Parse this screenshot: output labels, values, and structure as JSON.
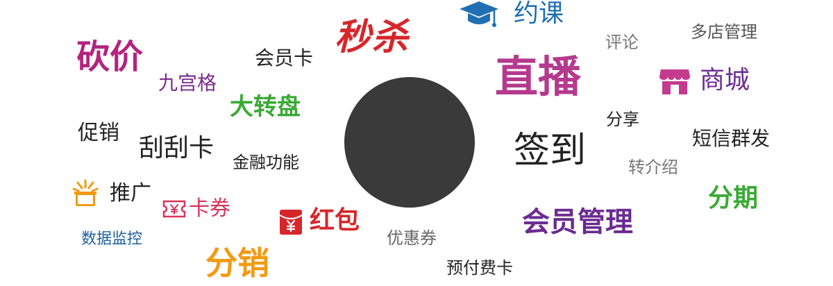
{
  "words": {
    "kanjia": "砍价",
    "jiugongge": "九宫格",
    "huiyuanka": "会员卡",
    "miaosha": "秒杀",
    "dazhuanpan": "大转盘",
    "cuxiao": "促销",
    "guaguaka": "刮刮卡",
    "jinrong": "金融功能",
    "tuiguang": "推广",
    "kaquan": "卡券",
    "hongbao": "红包",
    "shuju": "数据监控",
    "fenxiao": "分销",
    "youhuiquan": "优惠券",
    "yufu": "预付费卡",
    "yueke": "约课",
    "pinglun": "评论",
    "duodian": "多店管理",
    "zhibo": "直播",
    "shangcheng": "商城",
    "fenxiang": "分享",
    "duanxin": "短信群发",
    "qiandao": "签到",
    "zhuanjie": "转介绍",
    "fenqi": "分期",
    "huiyuanguanli": "会员管理"
  },
  "colors": {
    "kanjia": "#b3237f",
    "jiugongge": "#7a2c8c",
    "huiyuanka": "#222222",
    "miaosha": "#d7262b",
    "dazhuanpan": "#3aa935",
    "cuxiao": "#222222",
    "guaguaka": "#222222",
    "jinrong": "#222222",
    "tuiguang": "#222222",
    "kaquan": "#d8345a",
    "hongbao": "#d7262b",
    "shuju": "#1f5f9e",
    "fenxiao": "#f39a12",
    "youhuiquan": "#666666",
    "yufu": "#222222",
    "yueke": "#1f6fb2",
    "pinglun": "#777777",
    "duodian": "#555555",
    "zhibo": "#b43a8e",
    "shangcheng": "#6b2c91",
    "fenxiang": "#222222",
    "duanxin": "#222222",
    "qiandao": "#222222",
    "zhuanjie": "#777777",
    "fenqi": "#3aa935",
    "huiyuanguanli": "#6b2c91",
    "center_circle": "#3a3a3a",
    "icon_graduation": "#1f6fb2",
    "icon_store": "#c43b8e",
    "icon_gift": "#f39a12",
    "icon_ticket": "#d8345a",
    "icon_redpacket": "#d7262b"
  },
  "icons": {
    "yueke": "graduation-cap-icon",
    "shangcheng": "store-icon",
    "tuiguang": "gift-box-icon",
    "kaquan": "ticket-icon",
    "hongbao": "red-packet-icon"
  }
}
